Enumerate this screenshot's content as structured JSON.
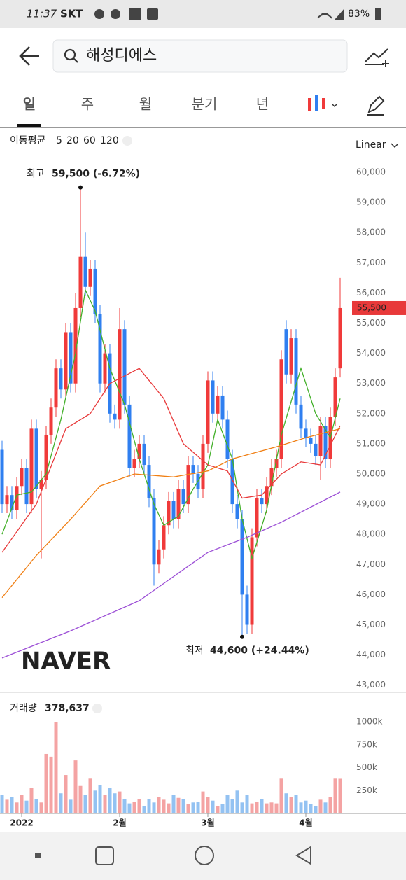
{
  "status_bar": {
    "time": "11:37",
    "carrier": "SKT",
    "battery": "83%"
  },
  "search": {
    "query": "해성디에스"
  },
  "tabs": [
    "일",
    "주",
    "월",
    "분기",
    "년"
  ],
  "chart_data": {
    "type": "candlestick",
    "scale_label": "Linear",
    "watermark": "NAVER",
    "legend_title": "이동평균",
    "grid": false,
    "up_color": "#f03a3a",
    "down_color": "#2f7ff0",
    "ylim": [
      42900,
      61300
    ],
    "yticks": [
      {
        "value": 43000,
        "label": "43,000"
      },
      {
        "value": 44000,
        "label": "44,000"
      },
      {
        "value": 45000,
        "label": "45,000"
      },
      {
        "value": 46000,
        "label": "46,000"
      },
      {
        "value": 47000,
        "label": "47,000"
      },
      {
        "value": 48000,
        "label": "48,000"
      },
      {
        "value": 49000,
        "label": "49,000"
      },
      {
        "value": 50000,
        "label": "50,000"
      },
      {
        "value": 51000,
        "label": "51,000"
      },
      {
        "value": 52000,
        "label": "52,000"
      },
      {
        "value": 53000,
        "label": "53,000"
      },
      {
        "value": 54000,
        "label": "54,000"
      },
      {
        "value": 55000,
        "label": "55,000"
      },
      {
        "value": 56000,
        "label": "56,000"
      },
      {
        "value": 57000,
        "label": "57,000"
      },
      {
        "value": 58000,
        "label": "58,000"
      },
      {
        "value": 59000,
        "label": "59,000"
      },
      {
        "value": 60000,
        "label": "60,000"
      }
    ],
    "categories": [
      null,
      null,
      null,
      null,
      "2022",
      null,
      null,
      null,
      null,
      null,
      null,
      null,
      null,
      null,
      null,
      null,
      null,
      null,
      null,
      null,
      null,
      null,
      null,
      null,
      "2월",
      null,
      null,
      null,
      null,
      null,
      null,
      null,
      null,
      null,
      null,
      null,
      null,
      null,
      null,
      null,
      null,
      null,
      "3월",
      null,
      null,
      null,
      null,
      null,
      null,
      null,
      null,
      null,
      null,
      null,
      null,
      null,
      null,
      null,
      null,
      null,
      null,
      null,
      "4월",
      null,
      null,
      null,
      null,
      null,
      null,
      null
    ],
    "open": [
      50800,
      49000,
      49300,
      48800,
      49600,
      50200,
      49000,
      51500,
      49500,
      49800,
      51300,
      52200,
      53500,
      52800,
      54700,
      53000,
      55500,
      57200,
      56200,
      56800,
      55300,
      53000,
      54000,
      52000,
      51800,
      54800,
      52300,
      50200,
      50500,
      51000,
      50300,
      49200,
      47000,
      47500,
      48300,
      49100,
      48500,
      49500,
      49000,
      50300,
      50000,
      49500,
      51000,
      53100,
      52000,
      52600,
      51800,
      50500,
      49000,
      48500,
      46000,
      45000,
      47900,
      49200,
      49000,
      49600,
      50200,
      50500,
      54800,
      53300,
      54500,
      52300,
      51500,
      51200,
      51000,
      50600,
      51600,
      50500,
      51900,
      53500
    ],
    "high": [
      51100,
      49600,
      49600,
      49900,
      50500,
      50500,
      51800,
      51800,
      50100,
      51600,
      52500,
      53800,
      53800,
      55000,
      55000,
      56000,
      59500,
      58000,
      57100,
      57100,
      55600,
      54300,
      54300,
      52300,
      55500,
      55100,
      52600,
      50800,
      51300,
      51300,
      50600,
      49500,
      47800,
      48600,
      49400,
      49400,
      49800,
      49800,
      50600,
      50600,
      50300,
      51300,
      53400,
      53400,
      52900,
      52900,
      52100,
      50800,
      49300,
      48800,
      46300,
      48200,
      49500,
      49500,
      49900,
      50500,
      50800,
      54100,
      55100,
      54800,
      54800,
      52600,
      51800,
      51500,
      51300,
      51900,
      51900,
      52200,
      53500,
      56500
    ],
    "low": [
      48700,
      48700,
      48500,
      48500,
      49300,
      48700,
      48700,
      49200,
      47200,
      49500,
      51000,
      51900,
      52500,
      52500,
      52700,
      52700,
      55200,
      55900,
      55900,
      55000,
      52700,
      52700,
      51700,
      51500,
      51500,
      52000,
      49900,
      49900,
      50200,
      50000,
      48900,
      46300,
      46700,
      47200,
      48000,
      48200,
      48200,
      48700,
      48700,
      49700,
      49200,
      49200,
      50700,
      51700,
      51700,
      51500,
      50200,
      48700,
      48200,
      44600,
      44700,
      44700,
      47600,
      48700,
      48700,
      49300,
      49900,
      50200,
      53000,
      53000,
      52000,
      51200,
      50900,
      50700,
      50300,
      49800,
      50200,
      50200,
      51600,
      53200
    ],
    "close": [
      49000,
      49300,
      48800,
      49600,
      50200,
      49000,
      51500,
      49500,
      49800,
      51300,
      52200,
      53500,
      52800,
      54700,
      53000,
      55500,
      57200,
      56200,
      56800,
      55300,
      53000,
      54000,
      52000,
      51800,
      54800,
      52300,
      50200,
      50500,
      51000,
      50300,
      49200,
      47000,
      47500,
      48300,
      49100,
      48500,
      49500,
      49000,
      50300,
      50000,
      49500,
      51000,
      53100,
      52000,
      52600,
      51800,
      50500,
      49000,
      48500,
      46000,
      45000,
      47900,
      49200,
      49000,
      49600,
      50200,
      50500,
      53800,
      53300,
      54500,
      52300,
      51500,
      51200,
      51000,
      50600,
      51600,
      50500,
      51900,
      53200,
      55500
    ],
    "last_price_label": "55,500",
    "high_annotation": {
      "label": "최고",
      "text": "59,500 (-6.72%)"
    },
    "low_annotation": {
      "label": "최저",
      "text": "44,600 (+24.44%)"
    },
    "series": [
      {
        "name": "5",
        "color": "#43b02a",
        "x": [
          0,
          3,
          6,
          9,
          12,
          15,
          17,
          19,
          22,
          25,
          28,
          31,
          33,
          36,
          39,
          42,
          44,
          47,
          49,
          51,
          54,
          57,
          61,
          64,
          67,
          69
        ],
        "values": [
          48000,
          49300,
          49400,
          50000,
          51800,
          54000,
          56100,
          55400,
          53500,
          52300,
          50500,
          49000,
          48300,
          48600,
          49500,
          50300,
          51800,
          50500,
          48500,
          47200,
          48800,
          51300,
          53500,
          52000,
          51200,
          52500
        ]
      },
      {
        "name": "20",
        "color": "#e8393a",
        "x": [
          0,
          7,
          13,
          18,
          22,
          28,
          33,
          37,
          42,
          46,
          49,
          53,
          57,
          61,
          65,
          69
        ],
        "values": [
          47400,
          49000,
          51500,
          52000,
          53000,
          53500,
          52500,
          51000,
          50300,
          50100,
          49200,
          49300,
          50000,
          50400,
          50300,
          51600
        ]
      },
      {
        "name": "60",
        "color": "#f07f14",
        "x": [
          0,
          7,
          14,
          20,
          27,
          35,
          42,
          47,
          56,
          62,
          69
        ],
        "values": [
          45900,
          47300,
          48500,
          49600,
          50000,
          49900,
          50100,
          50500,
          50900,
          51200,
          51500
        ]
      },
      {
        "name": "120",
        "color": "#9c4fd6",
        "x": [
          0,
          14,
          28,
          42,
          50,
          57,
          69
        ],
        "values": [
          43900,
          44800,
          45800,
          47400,
          47900,
          48400,
          49400
        ]
      }
    ],
    "volume": {
      "title": "거래량",
      "value_label": "378,637",
      "up_color": "#f4a3a3",
      "down_color": "#93c2f2",
      "ylim": [
        0,
        1200000
      ],
      "yticks": [
        {
          "value": 250000,
          "label": "250k"
        },
        {
          "value": 500000,
          "label": "500k"
        },
        {
          "value": 750000,
          "label": "750k"
        },
        {
          "value": 1000000,
          "label": "1000k"
        }
      ],
      "values": [
        200000,
        150000,
        180000,
        120000,
        200000,
        140000,
        280000,
        160000,
        120000,
        650000,
        620000,
        1000000,
        220000,
        420000,
        150000,
        580000,
        300000,
        200000,
        380000,
        250000,
        310000,
        200000,
        280000,
        220000,
        240000,
        160000,
        110000,
        130000,
        160000,
        80000,
        160000,
        120000,
        180000,
        150000,
        110000,
        200000,
        170000,
        160000,
        100000,
        120000,
        130000,
        240000,
        180000,
        140000,
        80000,
        100000,
        200000,
        160000,
        250000,
        120000,
        200000,
        110000,
        130000,
        160000,
        110000,
        120000,
        110000,
        380000,
        220000,
        180000,
        200000,
        120000,
        140000,
        100000,
        80000,
        150000,
        120000,
        180000,
        380000,
        378637
      ]
    }
  }
}
